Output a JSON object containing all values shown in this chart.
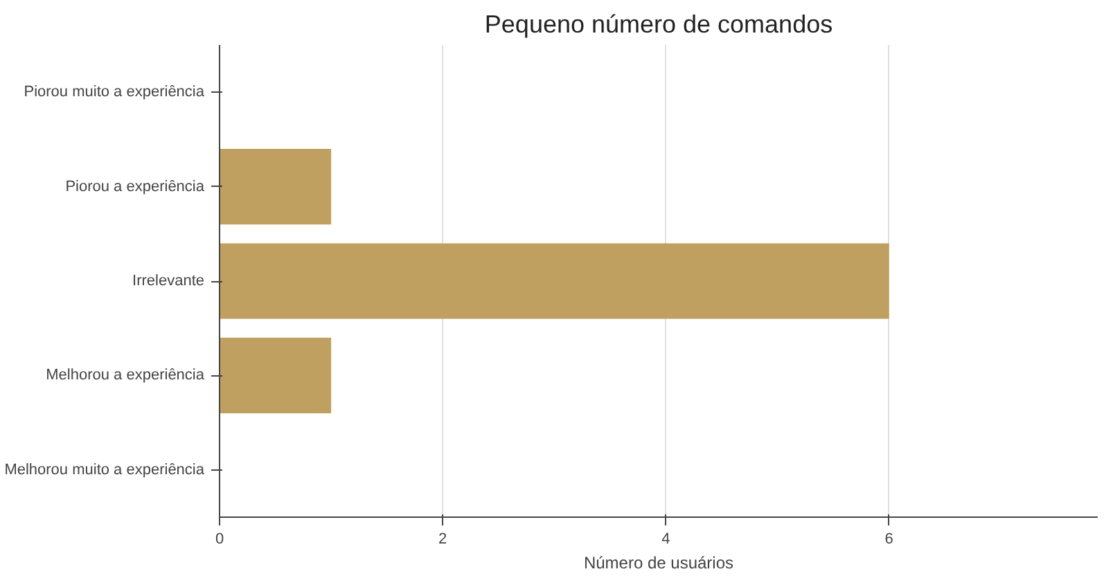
{
  "chart_data": {
    "type": "bar",
    "orientation": "horizontal",
    "title": "Pequeno número de comandos",
    "xlabel": "Número de usuários",
    "categories": [
      "Piorou muito a experiência",
      "Piorou a experiência",
      "Irrelevante",
      "Melhorou a experiência",
      "Melhorou muito a experiência"
    ],
    "values": [
      0,
      1,
      6,
      1,
      0
    ],
    "color": "#c0a060",
    "xlim": [
      0,
      7.87
    ],
    "xticks": [
      0,
      2,
      4,
      6
    ],
    "grid": "x"
  }
}
